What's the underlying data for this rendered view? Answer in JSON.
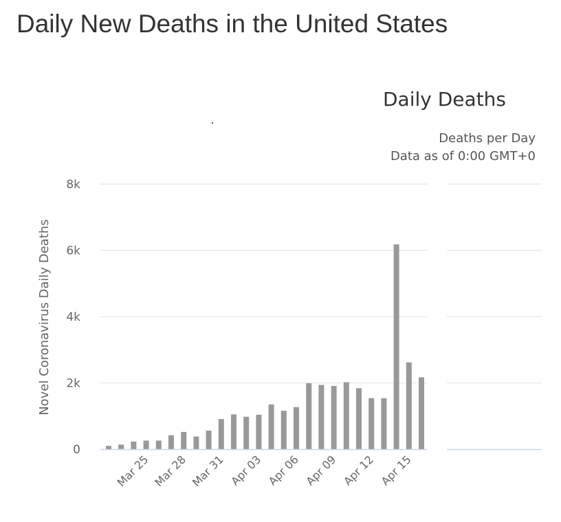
{
  "page": {
    "title": "Daily New Deaths in the United States"
  },
  "chart_data": {
    "type": "bar",
    "title": "Daily Deaths",
    "subtitle": [
      "Deaths per Day",
      "Data as of 0:00 GMT+0"
    ],
    "xlabel": "",
    "ylabel": "Novel Coronavirus Daily Deaths",
    "ylim": [
      0,
      8000
    ],
    "yticks": [
      0,
      2000,
      4000,
      6000,
      8000
    ],
    "ytick_labels": [
      "0",
      "2k",
      "4k",
      "6k",
      "8k"
    ],
    "grid": true,
    "legend": "none",
    "colors": {
      "bar": "#999999",
      "grid": "#e6e6e6",
      "axis": "#ccd6eb",
      "text": "#666666"
    },
    "categories": [
      "Mar 22",
      "Mar 23",
      "Mar 24",
      "Mar 25",
      "Mar 26",
      "Mar 27",
      "Mar 28",
      "Mar 29",
      "Mar 30",
      "Mar 31",
      "Apr 01",
      "Apr 02",
      "Apr 03",
      "Apr 04",
      "Apr 05",
      "Apr 06",
      "Apr 07",
      "Apr 08",
      "Apr 09",
      "Apr 10",
      "Apr 11",
      "Apr 12",
      "Apr 13",
      "Apr 14",
      "Apr 15",
      "Apr 16"
    ],
    "xtick_labels": [
      "Mar 25",
      "Mar 28",
      "Mar 31",
      "Apr 03",
      "Apr 06",
      "Apr 09",
      "Apr 12",
      "Apr 15"
    ],
    "series": [
      {
        "name": "Daily Deaths",
        "values": [
          100,
          140,
          230,
          260,
          260,
          420,
          520,
          380,
          560,
          910,
          1050,
          980,
          1040,
          1350,
          1160,
          1270,
          1990,
          1940,
          1910,
          2020,
          1840,
          1540,
          1540,
          6180,
          2620,
          2170
        ]
      }
    ]
  }
}
